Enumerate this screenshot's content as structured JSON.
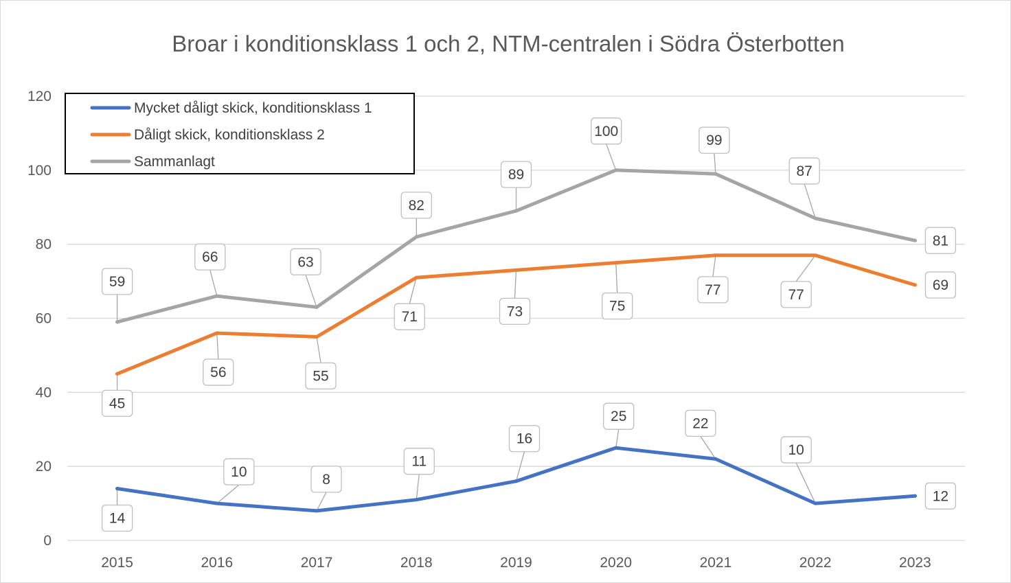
{
  "chart_data": {
    "type": "line",
    "title": "Broar i konditionsklass 1 och 2, NTM-centralen i Södra Österbotten",
    "xlabel": "",
    "ylabel": "",
    "categories": [
      "2015",
      "2016",
      "2017",
      "2018",
      "2019",
      "2020",
      "2021",
      "2022",
      "2023"
    ],
    "ylim": [
      0,
      120
    ],
    "yticks": [
      "0",
      "20",
      "40",
      "60",
      "80",
      "100",
      "120"
    ],
    "grid": true,
    "legend_position": "top-left",
    "series": [
      {
        "name": "Mycket dåligt skick, konditionsklass 1",
        "color": "#4472c4",
        "values": [
          14,
          10,
          8,
          11,
          16,
          25,
          22,
          10,
          12
        ]
      },
      {
        "name": "Dåligt skick, konditionsklass 2",
        "color": "#ed7d31",
        "values": [
          45,
          56,
          55,
          71,
          73,
          75,
          77,
          77,
          69
        ]
      },
      {
        "name": "Sammanlagt",
        "color": "#a5a5a5",
        "values": [
          59,
          66,
          63,
          82,
          89,
          100,
          99,
          87,
          81
        ]
      }
    ]
  }
}
